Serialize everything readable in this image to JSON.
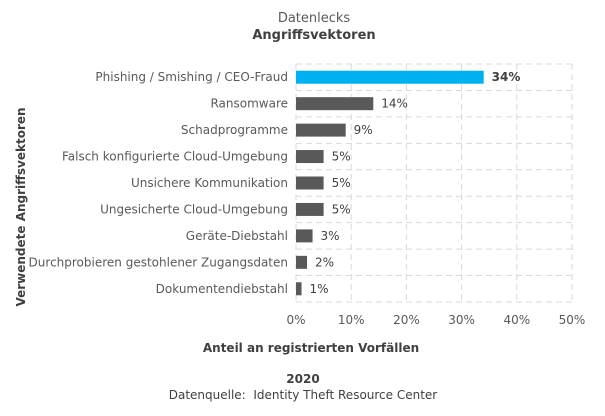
{
  "chart_data": {
    "type": "bar",
    "orientation": "horizontal",
    "title": "Datenlecks",
    "subtitle": "Angriffsvektoren",
    "categories": [
      "Phishing / Smishing / CEO-Fraud",
      "Ransomware",
      "Schadprogramme",
      "Falsch konfigurierte Cloud-Umgebung",
      "Unsichere Kommunikation",
      "Ungesicherte Cloud-Umgebung",
      "Geräte-Diebstahl",
      "Durchprobieren gestohlener Zugangsdaten",
      "Dokumentendiebstahl"
    ],
    "values": [
      34,
      14,
      9,
      5,
      5,
      5,
      3,
      2,
      1
    ],
    "value_labels": [
      "34%",
      "14%",
      "9%",
      "5%",
      "5%",
      "5%",
      "3%",
      "2%",
      "1%"
    ],
    "highlight_index": 0,
    "xlabel": "Anteil an registrierten Vorfällen",
    "ylabel": "Verwendete Angriffsvektoren",
    "xlim": [
      0,
      50
    ],
    "x_ticks": [
      0,
      10,
      20,
      30,
      40,
      50
    ],
    "x_tick_labels": [
      "0%",
      "10%",
      "20%",
      "30%",
      "40%",
      "50%"
    ],
    "grid": true,
    "colors": {
      "highlight": "#00b0f0",
      "default": "#595959",
      "grid": "#d9d9d9"
    }
  },
  "footer": {
    "year": "2020",
    "source": "Datenquelle:  Identity Theft Resource Center"
  }
}
